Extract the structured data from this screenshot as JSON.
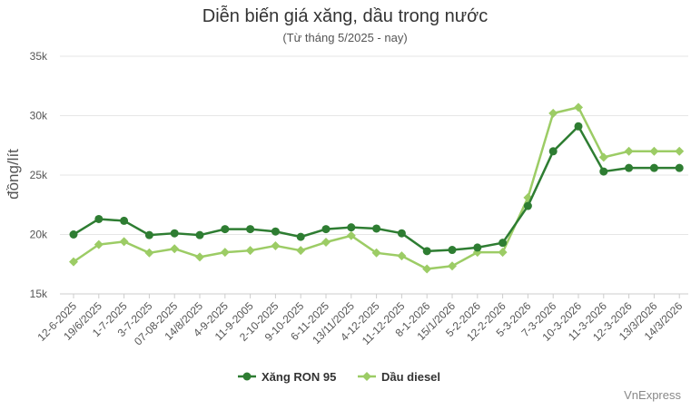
{
  "colors": {
    "ron95": "#2e7d32",
    "diesel": "#9ccc65",
    "grid": "#e6e6e6",
    "axis": "#cccccc"
  },
  "credit": "VnExpress",
  "chart_data": {
    "type": "line",
    "title": "Diễn biến giá xăng, dầu trong nước",
    "subtitle": "(Từ tháng 5/2025 - nay)",
    "ylabel": "đồng/lít",
    "xlabel": "",
    "ylim": [
      15000,
      35000
    ],
    "yticks": [
      15000,
      20000,
      25000,
      30000,
      35000
    ],
    "ytick_labels": [
      "15k",
      "20k",
      "25k",
      "30k",
      "35k"
    ],
    "grid": true,
    "legend_position": "bottom-center",
    "categories": [
      "12-6-2025",
      "19/6/2025",
      "1-7-2025",
      "3-7-2025",
      "07-08-2025",
      "14/8/2025",
      "4-9-2025",
      "11-9-2005",
      "2-10-2025",
      "9-10-2025",
      "6-11-2025",
      "13/11/2025",
      "4-12-2025",
      "11-12-2025",
      "8-1-2026",
      "15/1/2026",
      "5-2-2026",
      "12-2-2026",
      "5-3-2026",
      "7-3-2026",
      "10-3-2026",
      "11-3-2026",
      "12-3-2026",
      "13/3/2026",
      "14/3/2026"
    ],
    "series": [
      {
        "name": "Xăng RON 95",
        "color": "#2e7d32",
        "marker": "circle",
        "values": [
          20000,
          21300,
          21150,
          19950,
          20100,
          19950,
          20450,
          20450,
          20250,
          19800,
          20450,
          20600,
          20500,
          20100,
          18600,
          18700,
          18900,
          19300,
          22400,
          27000,
          29100,
          25300,
          25600,
          25600,
          25600
        ]
      },
      {
        "name": "Dầu diesel",
        "color": "#9ccc65",
        "marker": "diamond",
        "values": [
          17700,
          19150,
          19400,
          18450,
          18800,
          18100,
          18500,
          18650,
          19050,
          18650,
          19350,
          19900,
          18450,
          18200,
          17100,
          17350,
          18500,
          18500,
          23100,
          30200,
          30700,
          26500,
          27000,
          27000,
          27000
        ]
      }
    ]
  }
}
